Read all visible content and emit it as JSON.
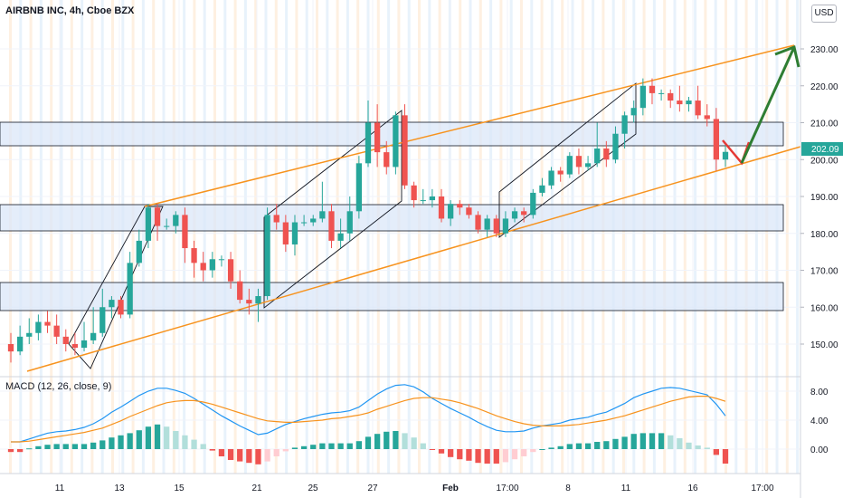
{
  "header": {
    "title": "AIRBNB INC, 4h, Cboe BZX",
    "currency_button": "USD"
  },
  "price_axis": {
    "ticks": [
      "230.00",
      "220.00",
      "210.00",
      "200.00",
      "190.00",
      "180.00",
      "170.00",
      "160.00",
      "150.00"
    ],
    "tick_values": [
      230,
      220,
      210,
      200,
      190,
      180,
      170,
      160,
      150
    ],
    "last_price_label": "202.09",
    "last_price": 202.09
  },
  "macd_pane": {
    "title": "MACD (12, 26, close, 9)",
    "ticks": [
      "8.00",
      "4.00",
      "0.00"
    ],
    "tick_values": [
      8,
      4,
      0
    ]
  },
  "time_axis": {
    "labels": [
      "11",
      "13",
      "15",
      "21",
      "25",
      "27",
      "Feb",
      "17:00",
      "8",
      "11",
      "16",
      "17:00"
    ]
  },
  "colors": {
    "bull": "#26a69a",
    "bear": "#ef5350",
    "band_fill": "#dbe7f8",
    "channel_line": "#f7931e",
    "macd_line": "#2196f3",
    "signal_line": "#f7931e",
    "arrow_up": "#2e7d32",
    "arrow_down": "#e53935",
    "price_label_bg": "#26a69a"
  },
  "chart_data": {
    "type": "candlestick",
    "candles": [
      [
        150,
        148,
        153,
        145
      ],
      [
        148,
        152,
        155,
        147
      ],
      [
        152,
        153,
        157,
        150
      ],
      [
        153,
        156,
        158,
        151
      ],
      [
        156,
        155,
        159,
        153
      ],
      [
        155,
        152,
        158,
        150
      ],
      [
        152,
        150,
        154,
        148
      ],
      [
        150,
        149,
        153,
        147
      ],
      [
        149,
        151,
        156,
        148
      ],
      [
        151,
        153,
        160,
        150
      ],
      [
        153,
        160,
        165,
        152
      ],
      [
        160,
        162,
        163,
        157
      ],
      [
        162,
        158,
        163,
        157
      ],
      [
        158,
        172,
        175,
        157
      ],
      [
        172,
        178,
        181,
        171
      ],
      [
        178,
        187,
        188,
        176
      ],
      [
        187,
        182,
        188,
        178
      ],
      [
        182,
        182,
        184,
        181
      ],
      [
        182,
        185,
        186,
        180
      ],
      [
        185,
        176,
        187,
        172
      ],
      [
        176,
        172,
        178,
        168
      ],
      [
        172,
        170,
        175,
        167
      ],
      [
        170,
        173,
        175,
        168
      ],
      [
        173,
        173,
        174,
        171
      ],
      [
        173,
        167,
        175,
        165
      ],
      [
        167,
        162,
        170,
        161
      ],
      [
        162,
        161,
        165,
        158
      ],
      [
        161,
        163,
        165,
        156
      ],
      [
        163,
        185,
        187,
        162
      ],
      [
        185,
        183,
        188,
        181
      ],
      [
        183,
        177,
        185,
        175
      ],
      [
        177,
        183,
        185,
        174
      ],
      [
        183,
        183,
        185,
        182
      ],
      [
        183,
        184,
        185,
        182
      ],
      [
        184,
        186,
        194,
        183
      ],
      [
        186,
        178,
        188,
        176
      ],
      [
        178,
        180,
        184,
        176
      ],
      [
        180,
        186,
        190,
        178
      ],
      [
        186,
        199,
        201,
        184
      ],
      [
        199,
        210,
        216,
        198
      ],
      [
        210,
        202,
        215,
        198
      ],
      [
        202,
        198,
        205,
        196
      ],
      [
        198,
        212,
        213,
        196
      ],
      [
        212,
        193,
        215,
        192
      ],
      [
        193,
        189,
        194,
        187
      ],
      [
        189,
        189,
        192,
        188
      ],
      [
        189,
        190,
        192,
        187
      ],
      [
        190,
        184,
        192,
        183
      ],
      [
        184,
        188,
        189,
        182
      ],
      [
        188,
        187,
        189,
        185
      ],
      [
        187,
        185,
        188,
        184
      ],
      [
        185,
        181,
        186,
        180
      ],
      [
        181,
        184,
        185,
        179
      ],
      [
        184,
        180,
        185,
        179
      ],
      [
        180,
        184,
        186,
        179
      ],
      [
        184,
        186,
        187,
        183
      ],
      [
        186,
        185,
        187,
        183
      ],
      [
        185,
        191,
        192,
        184
      ],
      [
        191,
        193,
        195,
        190
      ],
      [
        193,
        197,
        198,
        192
      ],
      [
        197,
        196,
        198,
        194
      ],
      [
        196,
        201,
        202,
        195
      ],
      [
        201,
        198,
        203,
        196
      ],
      [
        198,
        199,
        201,
        197
      ],
      [
        199,
        203,
        210,
        198
      ],
      [
        203,
        200,
        205,
        198
      ],
      [
        200,
        207,
        209,
        199
      ],
      [
        207,
        212,
        213,
        203
      ],
      [
        212,
        214,
        216,
        210
      ],
      [
        214,
        220,
        222,
        212
      ],
      [
        220,
        218,
        222,
        215
      ],
      [
        218,
        218,
        219,
        216
      ],
      [
        218,
        216,
        219,
        214
      ],
      [
        216,
        215,
        220,
        213
      ],
      [
        215,
        216,
        217,
        213
      ],
      [
        216,
        212,
        220,
        211
      ],
      [
        212,
        211,
        215,
        209
      ],
      [
        211,
        200,
        214,
        197
      ],
      [
        200,
        202.09,
        204,
        198
      ]
    ],
    "macd": [
      1.0,
      1.0,
      1.4,
      1.8,
      2.2,
      2.4,
      2.5,
      2.7,
      3.0,
      3.5,
      4.2,
      5.1,
      5.8,
      6.6,
      7.4,
      8.0,
      8.4,
      8.4,
      8.1,
      7.7,
      7.0,
      6.2,
      5.4,
      4.6,
      3.9,
      3.2,
      2.6,
      2.0,
      2.2,
      2.8,
      3.4,
      3.8,
      4.2,
      4.5,
      4.8,
      5.0,
      5.1,
      5.3,
      5.8,
      6.7,
      7.6,
      8.3,
      8.8,
      8.9,
      8.6,
      7.9,
      7.0,
      6.3,
      5.6,
      5.0,
      4.4,
      3.7,
      3.1,
      2.6,
      2.4,
      2.4,
      2.5,
      2.9,
      3.2,
      3.4,
      3.6,
      4.0,
      4.2,
      4.4,
      4.8,
      5.1,
      5.7,
      6.3,
      7.1,
      7.6,
      8.0,
      8.4,
      8.5,
      8.4,
      8.1,
      7.8,
      7.5,
      6.2,
      4.6
    ],
    "signal": [
      1.0,
      1.0,
      1.1,
      1.3,
      1.5,
      1.7,
      1.9,
      2.1,
      2.3,
      2.6,
      2.9,
      3.4,
      3.9,
      4.5,
      5.0,
      5.5,
      6.0,
      6.4,
      6.6,
      6.7,
      6.7,
      6.5,
      6.2,
      5.8,
      5.4,
      5.0,
      4.6,
      4.2,
      3.9,
      3.8,
      3.7,
      3.7,
      3.8,
      3.9,
      4.0,
      4.2,
      4.3,
      4.5,
      4.7,
      5.0,
      5.5,
      5.9,
      6.3,
      6.7,
      7.0,
      7.1,
      7.1,
      6.9,
      6.7,
      6.4,
      6.0,
      5.6,
      5.1,
      4.6,
      4.2,
      3.8,
      3.5,
      3.3,
      3.2,
      3.2,
      3.2,
      3.3,
      3.4,
      3.6,
      3.8,
      4.0,
      4.3,
      4.6,
      5.0,
      5.4,
      5.8,
      6.2,
      6.6,
      6.9,
      7.2,
      7.3,
      7.3,
      7.0,
      6.6
    ],
    "histogram": [
      -0.4,
      -0.4,
      0.1,
      0.4,
      0.6,
      0.7,
      0.7,
      0.7,
      0.7,
      0.9,
      1.2,
      1.6,
      1.9,
      2.2,
      2.6,
      3.1,
      3.4,
      3.1,
      2.5,
      1.9,
      1.3,
      0.7,
      -0.2,
      -1.0,
      -1.5,
      -1.7,
      -1.9,
      -2.1,
      -1.7,
      -1.0,
      -0.3,
      0.2,
      0.4,
      0.6,
      0.8,
      0.8,
      0.8,
      0.8,
      1.1,
      1.7,
      2.1,
      2.4,
      2.5,
      2.2,
      1.6,
      0.8,
      -0.1,
      -0.6,
      -1.1,
      -1.4,
      -1.6,
      -1.9,
      -2.0,
      -2.0,
      -1.8,
      -1.4,
      -1.0,
      -0.4,
      0.0,
      0.2,
      0.4,
      0.7,
      0.8,
      0.8,
      1.0,
      1.1,
      1.4,
      1.7,
      2.1,
      2.2,
      2.2,
      2.2,
      1.9,
      1.5,
      0.9,
      0.5,
      0.2,
      -0.8,
      -2.0
    ],
    "price_range": [
      142,
      234
    ],
    "macd_range": [
      -3.5,
      10.5
    ]
  }
}
